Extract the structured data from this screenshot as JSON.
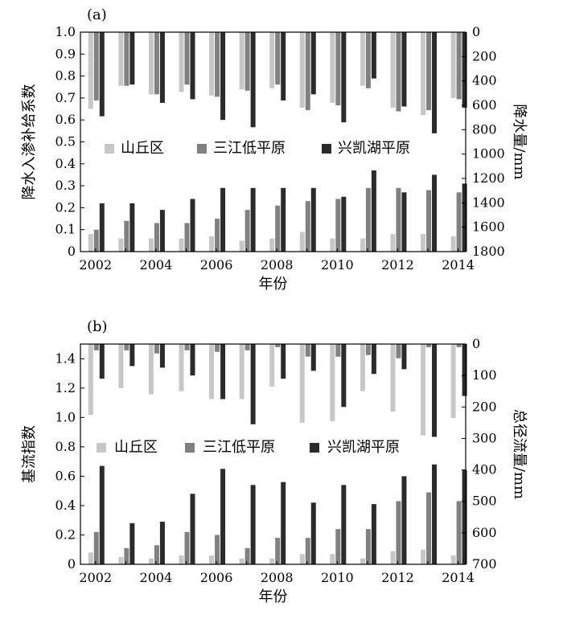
{
  "colors": {
    "shanqiu": "#c7c7c7",
    "sanjiang": "#808080",
    "xingkai": "#2b2b2b"
  },
  "chart_data": [
    {
      "type": "bar",
      "panel_label": "(a)",
      "xlabel": "年份",
      "ylabel": "降水入渗补给系数",
      "y2label": "降水量/mm",
      "ylim": [
        0,
        1.0
      ],
      "y2lim": [
        0,
        1800
      ],
      "y2_inverted": true,
      "yticks": [
        "0",
        "0.1",
        "0.2",
        "0.3",
        "0.4",
        "0.5",
        "0.6",
        "0.7",
        "0.8",
        "0.9",
        "1.0"
      ],
      "y2ticks": [
        "0",
        "200",
        "400",
        "600",
        "800",
        "1000",
        "1200",
        "1400",
        "1600",
        "1800"
      ],
      "xticks": [
        "2002",
        "2004",
        "2006",
        "2008",
        "2010",
        "2012",
        "2014"
      ],
      "legend": [
        "山丘区",
        "三江低平原",
        "兴凯湖平原"
      ],
      "years": [
        2002,
        2003,
        2004,
        2005,
        2006,
        2007,
        2008,
        2009,
        2010,
        2011,
        2012,
        2013,
        2014
      ],
      "series": [
        {
          "name": "山丘区",
          "values": [
            0.08,
            0.06,
            0.06,
            0.06,
            0.07,
            0.05,
            0.06,
            0.09,
            0.06,
            0.06,
            0.08,
            0.08,
            0.07
          ]
        },
        {
          "name": "三江低平原",
          "values": [
            0.1,
            0.14,
            0.13,
            0.13,
            0.15,
            0.19,
            0.21,
            0.23,
            0.24,
            0.29,
            0.29,
            0.28,
            0.27
          ]
        },
        {
          "name": "兴凯湖平原",
          "values": [
            0.22,
            0.22,
            0.19,
            0.24,
            0.29,
            0.29,
            0.29,
            0.29,
            0.25,
            0.37,
            0.27,
            0.35,
            0.31
          ]
        }
      ],
      "series2": [
        {
          "name": "山丘区",
          "values": [
            630,
            440,
            510,
            490,
            520,
            470,
            460,
            620,
            580,
            440,
            620,
            680,
            540
          ]
        },
        {
          "name": "三江低平原",
          "values": [
            560,
            440,
            510,
            430,
            530,
            480,
            430,
            640,
            600,
            460,
            650,
            640,
            550
          ]
        },
        {
          "name": "兴凯湖平原",
          "values": [
            690,
            430,
            580,
            550,
            720,
            780,
            560,
            510,
            740,
            380,
            610,
            830,
            620
          ]
        }
      ]
    },
    {
      "type": "bar",
      "panel_label": "(b)",
      "xlabel": "年份",
      "ylabel": "基流指数",
      "y2label": "总径流量/mm",
      "ylim": [
        0,
        1.5
      ],
      "y2lim": [
        0,
        700
      ],
      "y2_inverted": true,
      "yticks": [
        "0",
        "0.2",
        "0.4",
        "0.6",
        "0.8",
        "1.0",
        "1.2",
        "1.4"
      ],
      "y2ticks": [
        "0",
        "100",
        "200",
        "300",
        "400",
        "500",
        "600",
        "700"
      ],
      "xticks": [
        "2002",
        "2004",
        "2006",
        "2008",
        "2010",
        "2012",
        "2014"
      ],
      "legend": [
        "山丘区",
        "三江低平原",
        "兴凯湖平原"
      ],
      "years": [
        2002,
        2003,
        2004,
        2005,
        2006,
        2007,
        2008,
        2009,
        2010,
        2011,
        2012,
        2013,
        2014
      ],
      "series": [
        {
          "name": "山丘区",
          "values": [
            0.08,
            0.05,
            0.04,
            0.06,
            0.06,
            0.04,
            0.04,
            0.07,
            0.07,
            0.04,
            0.09,
            0.1,
            0.06
          ]
        },
        {
          "name": "三江低平原",
          "values": [
            0.22,
            0.11,
            0.13,
            0.22,
            0.2,
            0.11,
            0.18,
            0.18,
            0.24,
            0.24,
            0.43,
            0.49,
            0.43
          ]
        },
        {
          "name": "兴凯湖平原",
          "values": [
            0.67,
            0.28,
            0.29,
            0.48,
            0.65,
            0.54,
            0.56,
            0.42,
            0.54,
            0.41,
            0.6,
            0.68,
            0.64
          ]
        }
      ],
      "series2": [
        {
          "name": "山丘区",
          "values": [
            225,
            140,
            160,
            150,
            175,
            175,
            135,
            250,
            245,
            150,
            215,
            290,
            235
          ]
        },
        {
          "name": "三江低平原",
          "values": [
            20,
            20,
            30,
            20,
            25,
            20,
            10,
            40,
            40,
            35,
            45,
            10,
            10
          ]
        },
        {
          "name": "兴凯湖平原",
          "values": [
            110,
            70,
            75,
            100,
            175,
            255,
            110,
            85,
            200,
            95,
            80,
            295,
            165
          ]
        }
      ]
    }
  ]
}
